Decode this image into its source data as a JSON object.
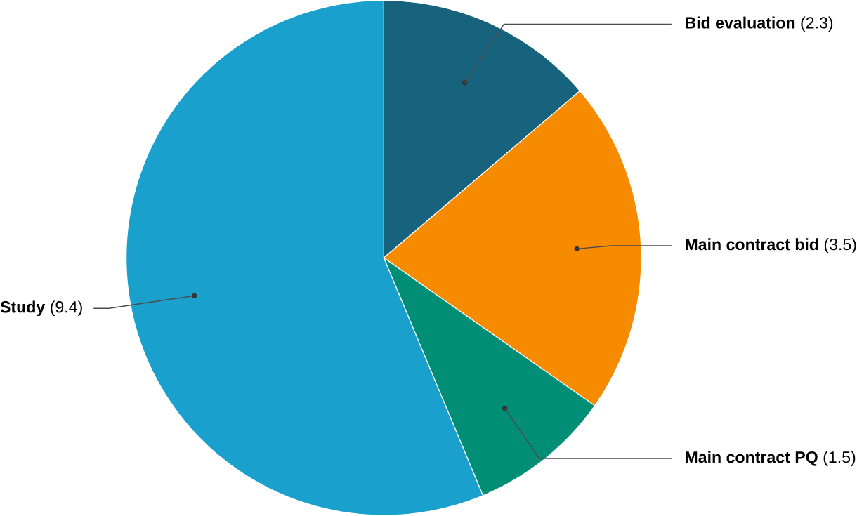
{
  "chart_data": {
    "type": "pie",
    "categories": [
      "Bid evaluation",
      "Main contract bid",
      "Main contract PQ",
      "Study"
    ],
    "values": [
      2.3,
      3.5,
      1.5,
      9.4
    ],
    "colors": [
      "#17637e",
      "#f68b00",
      "#008f76",
      "#19a0cd"
    ],
    "value_labels": [
      "(2.3)",
      "(3.5)",
      "(1.5)",
      "(9.4)"
    ]
  }
}
